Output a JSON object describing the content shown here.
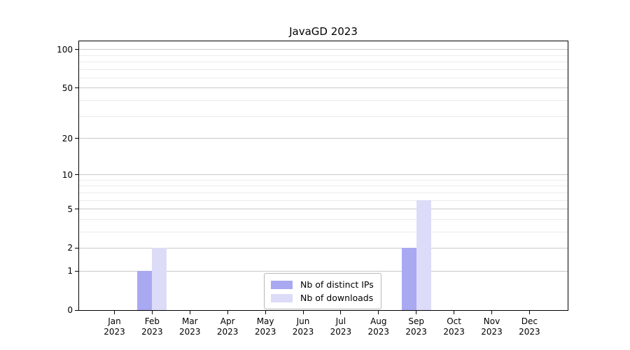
{
  "chart_data": {
    "type": "bar",
    "title": "JavaGD 2023",
    "xlabel": "",
    "ylabel": "",
    "yscale": "log1p",
    "ylim": [
      0,
      116
    ],
    "yticks": [
      0,
      1,
      2,
      5,
      10,
      20,
      50,
      100
    ],
    "gridlines": [
      1,
      2,
      3,
      4,
      5,
      6,
      7,
      8,
      9,
      10,
      20,
      30,
      40,
      50,
      60,
      70,
      80,
      90,
      100
    ],
    "grid": "horizontal",
    "categories": [
      "Jan 2023",
      "Feb 2023",
      "Mar 2023",
      "Apr 2023",
      "May 2023",
      "Jun 2023",
      "Jul 2023",
      "Aug 2023",
      "Sep 2023",
      "Oct 2023",
      "Nov 2023",
      "Dec 2023"
    ],
    "series": [
      {
        "name": "Nb of distinct IPs",
        "color": "#a9a9f2",
        "values": [
          0,
          1,
          0,
          0,
          0,
          0,
          0,
          0,
          2,
          0,
          0,
          0
        ]
      },
      {
        "name": "Nb of downloads",
        "color": "#dcdcf8",
        "values": [
          0,
          2,
          0,
          0,
          0,
          0,
          0,
          0,
          6,
          0,
          0,
          0
        ]
      }
    ],
    "legend_position": "inside-bottom-center",
    "colors": {
      "axis": "#000000",
      "grid_major": "#c9c9c9",
      "grid_minor": "#ebebeb",
      "legend_border": "#b9b9b9",
      "background": "#ffffff",
      "text": "#000000"
    }
  }
}
